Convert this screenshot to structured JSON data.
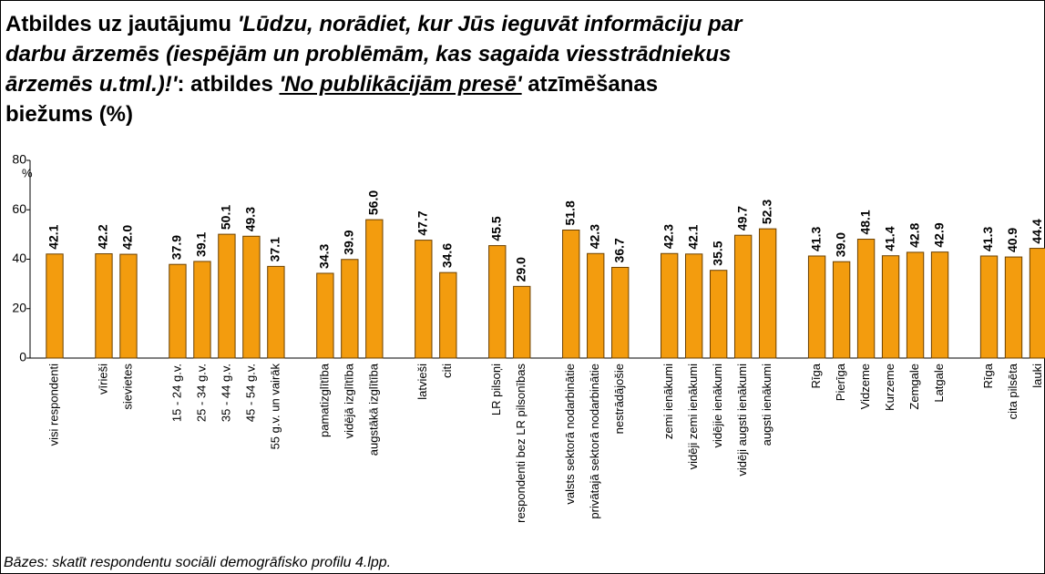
{
  "chart_data": {
    "type": "bar",
    "title": [
      "Atbildes uz jautājumu ",
      "'Lūdzu, norādiet, kur Jūs ieguvāt informāciju par",
      "darbu ārzemēs (iespējām un problēmām, kas sagaida viesstrādniekus",
      "ārzemēs u.tml.)!'",
      ": atbildes ",
      "'No publikācijām presē'",
      " atzīmēšanas",
      "biežums (%)"
    ],
    "y_label": "%",
    "footnote": "Bāzes: skatīt respondentu sociāli demogrāfisko profilu 4.lpp.",
    "color": "#f39c0e",
    "ylim": [
      0,
      80
    ],
    "yticks": [
      0,
      20,
      40,
      60,
      80
    ],
    "grid": false,
    "categories": [
      "visi respondenti",
      null,
      "vīrieši",
      "sievietes",
      null,
      "15 - 24 g.v.",
      "25 - 34 g.v.",
      "35 - 44 g.v.",
      "45 - 54 g.v.",
      "55 g.v. un vairāk",
      null,
      "pamatizglītība",
      "vidējā izglītība",
      "augstākā izglītība",
      null,
      "latvieši",
      "citi",
      null,
      "LR pilsoņi",
      "respondenti bez LR pilsonības",
      null,
      "valsts sektorā nodarbinātie",
      "privātajā sektorā nodarbinātie",
      "nestrādājošie",
      null,
      "zemi ienākumi",
      "vidēji zemi ienākumi",
      "vidējie ienākumi",
      "vidēji augsti ienākumi",
      "augsti ienākumi",
      null,
      "Rīga",
      "Pierīga",
      "Vidzeme",
      "Kurzeme",
      "Zemgale",
      "Latgale",
      null,
      "Rīga",
      "cita pilsēta",
      "lauki"
    ],
    "values": [
      42.1,
      null,
      42.2,
      42.0,
      null,
      37.9,
      39.1,
      50.1,
      49.3,
      37.1,
      null,
      34.3,
      39.9,
      56.0,
      null,
      47.7,
      34.6,
      null,
      45.5,
      29.0,
      null,
      51.8,
      42.3,
      36.7,
      null,
      42.3,
      42.1,
      35.5,
      49.7,
      52.3,
      null,
      41.3,
      39.0,
      48.1,
      41.4,
      42.8,
      42.9,
      null,
      41.3,
      40.9,
      44.4
    ],
    "value_labels": [
      "42.1",
      null,
      "42.2",
      "42.0",
      null,
      "37.9",
      "39.1",
      "50.1",
      "49.3",
      "37.1",
      null,
      "34.3",
      "39.9",
      "56.0",
      null,
      "47.7",
      "34.6",
      null,
      "45.5",
      "29.0",
      null,
      "51.8",
      "42.3",
      "36.7",
      null,
      "42.3",
      "42.1",
      "35.5",
      "49.7",
      "52.3",
      null,
      "41.3",
      "39.0",
      "48.1",
      "41.4",
      "42.8",
      "42.9",
      null,
      "41.3",
      "40.9",
      "44.4"
    ]
  }
}
